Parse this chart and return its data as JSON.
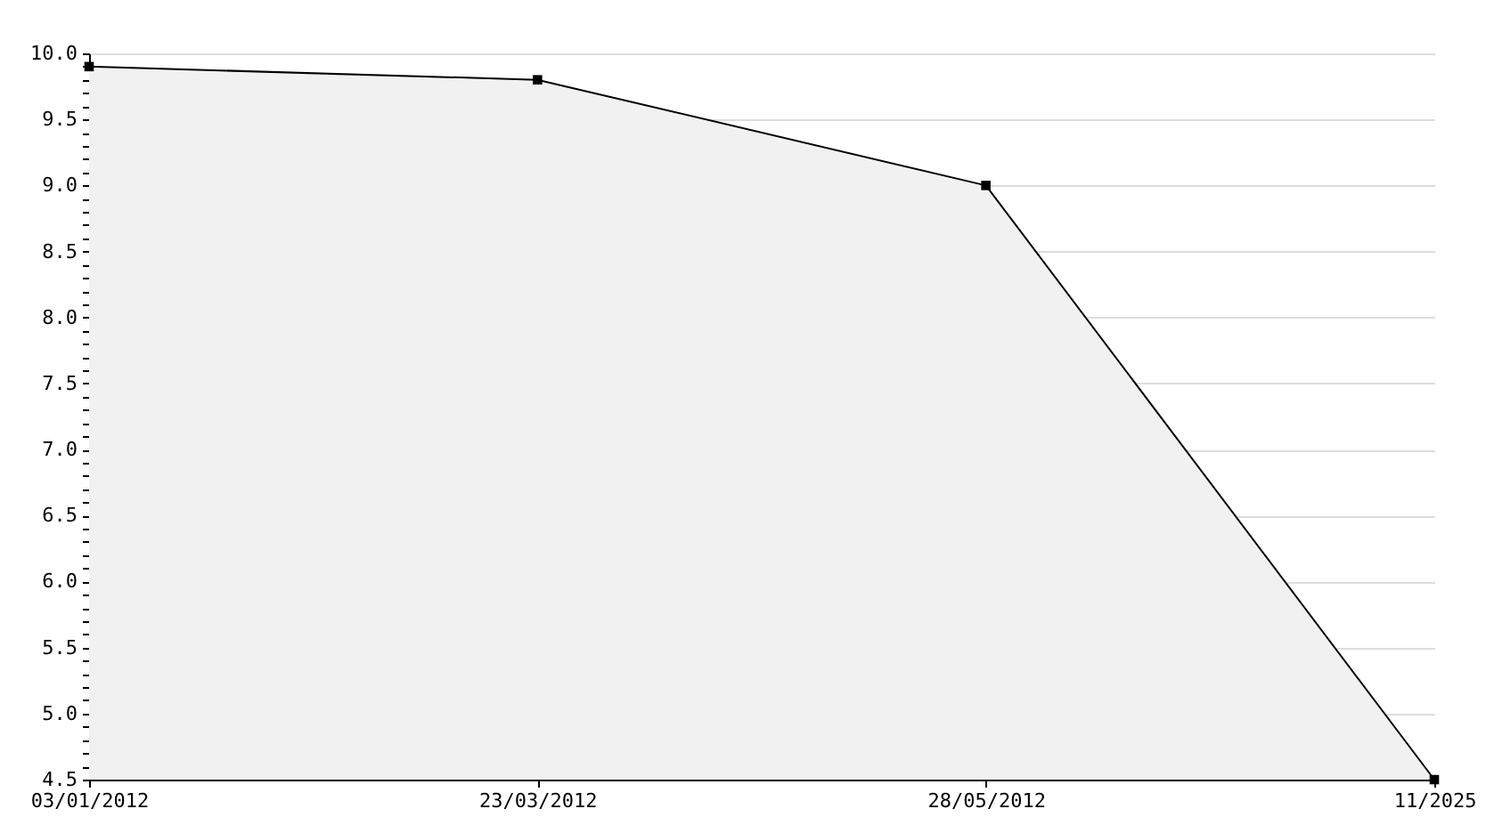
{
  "chart_data": {
    "type": "area",
    "categories": [
      "03/01/2012",
      "23/03/2012",
      "28/05/2012",
      "11/2025"
    ],
    "series": [
      {
        "color": "#f1f1f1",
        "values": [
          9.9,
          9.8,
          9.0,
          4.5
        ]
      }
    ],
    "ylim": [
      4.5,
      10.0
    ],
    "yticks": [
      4.5,
      {
        "value": 4.6,
        "label": null
      },
      {
        "value": 4.7,
        "label": null
      },
      {
        "value": 4.8,
        "label": null
      },
      {
        "value": 4.9,
        "label": null
      },
      {
        "value": 5,
        "label": "5.0"
      },
      {
        "value": 5.1,
        "label": null
      },
      {
        "value": 5.2,
        "label": null
      },
      {
        "value": 5.3,
        "label": null
      },
      {
        "value": 5.4,
        "label": null
      },
      5.5,
      {
        "value": 5.6,
        "label": null
      },
      {
        "value": 5.7,
        "label": null
      },
      {
        "value": 5.8,
        "label": null
      },
      {
        "value": 5.9,
        "label": null
      },
      {
        "value": 6,
        "label": "6.0"
      },
      {
        "value": 6.1,
        "label": null
      },
      {
        "value": 6.2,
        "label": null
      },
      {
        "value": 6.3,
        "label": null
      },
      {
        "value": 6.4,
        "label": null
      },
      6.5,
      {
        "value": 6.6,
        "label": null
      },
      {
        "value": 6.7,
        "label": null
      },
      {
        "value": 6.8,
        "label": null
      },
      {
        "value": 6.9,
        "label": null
      },
      {
        "value": 7,
        "label": "7.0"
      },
      {
        "value": 7.1,
        "label": null
      },
      {
        "value": 7.2,
        "label": null
      },
      {
        "value": 7.3,
        "label": null
      },
      {
        "value": 7.4,
        "label": null
      },
      7.5,
      {
        "value": 7.6,
        "label": null
      },
      {
        "value": 7.7,
        "label": null
      },
      {
        "value": 7.8,
        "label": null
      },
      {
        "value": 7.9,
        "label": null
      },
      {
        "value": 8,
        "label": "8.0"
      },
      {
        "value": 8.1,
        "label": null
      },
      {
        "value": 8.2,
        "label": null
      },
      {
        "value": 8.3,
        "label": null
      },
      {
        "value": 8.4,
        "label": null
      },
      8.5,
      {
        "value": 8.6,
        "label": null
      },
      {
        "value": 8.7,
        "label": null
      },
      {
        "value": 8.8,
        "label": null
      },
      {
        "value": 8.9,
        "label": null
      },
      {
        "value": 9,
        "label": "9.0"
      },
      {
        "value": 9.1,
        "label": null
      },
      {
        "value": 9.2,
        "label": null
      },
      {
        "value": 9.3,
        "label": null
      },
      {
        "value": 9.4,
        "label": null
      },
      9.5,
      {
        "value": 9.6,
        "label": null
      },
      {
        "value": 9.7,
        "label": null
      },
      {
        "value": 9.8,
        "label": null
      },
      {
        "value": 9.9,
        "label": null
      },
      {
        "value": 10,
        "label": "10.0"
      }
    ],
    "grid": "y",
    "marker": "square",
    "line_style": "solid"
  }
}
